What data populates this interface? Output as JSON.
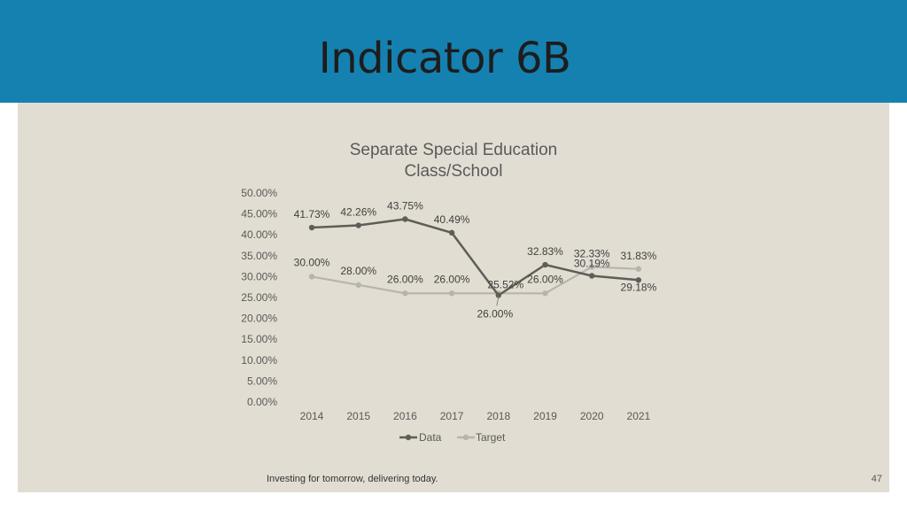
{
  "slide": {
    "title": "Indicator 6B",
    "footer": "Investing for tomorrow, delivering today.",
    "page_number": "47"
  },
  "colors": {
    "header": "#1581b0",
    "panel": "#e2ddd2",
    "data_series": "#5f5d58",
    "target_series": "#b7b4ae"
  },
  "chart_data": {
    "type": "line",
    "title": "Separate Special Education Class/School",
    "title_lines": [
      "Separate Special Education",
      "Class/School"
    ],
    "categories": [
      "2014",
      "2015",
      "2016",
      "2017",
      "2018",
      "2019",
      "2020",
      "2021"
    ],
    "series": [
      {
        "name": "Data",
        "values": [
          41.73,
          42.26,
          43.75,
          40.49,
          25.52,
          32.83,
          30.19,
          29.18
        ],
        "labels": [
          "41.73%",
          "42.26%",
          "43.75%",
          "40.49%",
          "25.52%",
          "32.83%",
          "30.19%",
          "29.18%"
        ]
      },
      {
        "name": "Target",
        "values": [
          30.0,
          28.0,
          26.0,
          26.0,
          26.0,
          26.0,
          32.33,
          31.83
        ],
        "labels": [
          "30.00%",
          "28.00%",
          "26.00%",
          "26.00%",
          "26.00%",
          "26.00%",
          "32.33%",
          "31.83%"
        ]
      }
    ],
    "y_ticks": [
      "0.00%",
      "5.00%",
      "10.00%",
      "15.00%",
      "20.00%",
      "25.00%",
      "30.00%",
      "35.00%",
      "40.00%",
      "45.00%",
      "50.00%"
    ],
    "ylim": [
      0,
      50
    ],
    "grid": false,
    "legend": "bottom"
  }
}
